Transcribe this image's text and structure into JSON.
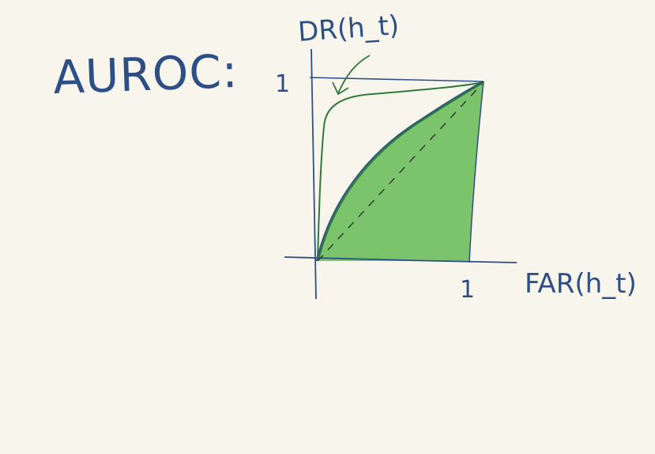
{
  "title": "AUROC:",
  "axes": {
    "y_label": "DR(h_t)",
    "x_label": "FAR(h_t)",
    "y_tick": "1",
    "x_tick": "1"
  },
  "colors": {
    "ink": "#2e4f86",
    "green_line": "#2f7a3b",
    "area_fill": "#7cc46b",
    "paper": "#f7f5ec"
  }
}
